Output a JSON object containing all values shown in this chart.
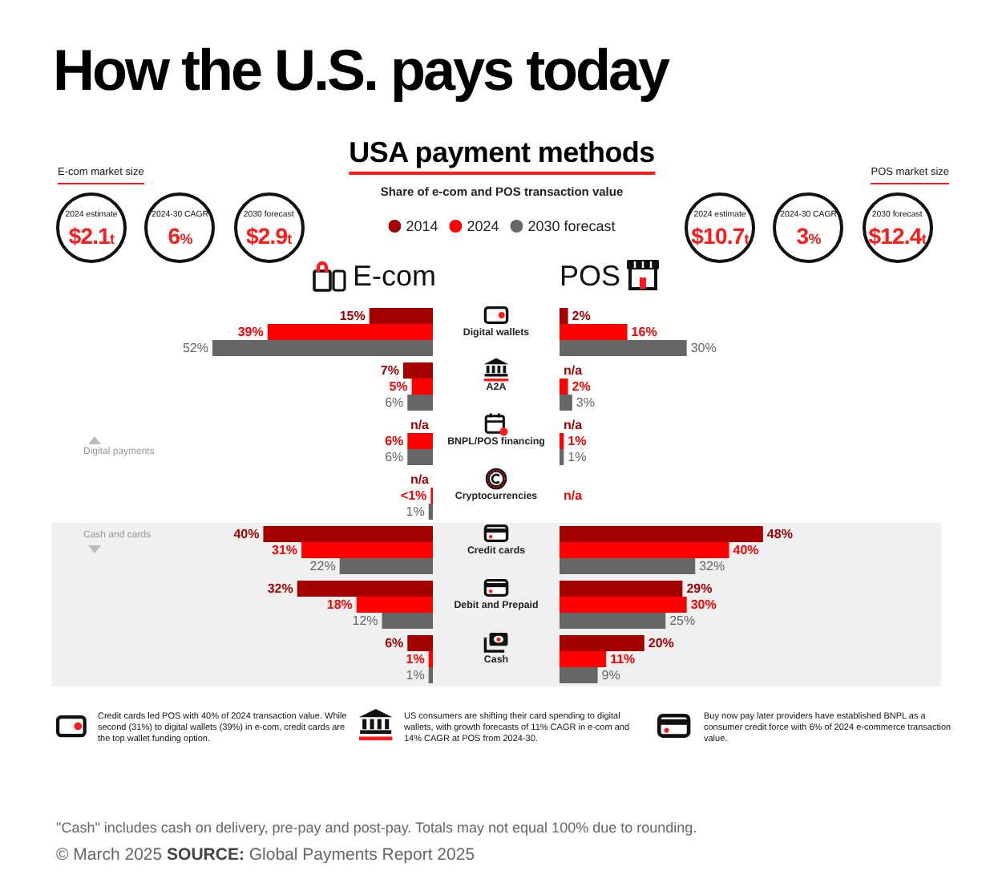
{
  "chart_data": [
    {
      "type": "other",
      "title": "How the U.S. pays today",
      "subtitle": "USA payment methods",
      "annotations": [
        "Share of e-com and POS transaction value"
      ]
    },
    {
      "type": "other",
      "title": "E-com market size",
      "annotations": [
        "2024 estimate",
        "$2.1t",
        "2024-30 CAGR",
        "6%",
        "2030 forecast",
        "$2.9t"
      ]
    },
    {
      "type": "other",
      "title": "POS market size",
      "annotations": [
        "2024 estimate",
        "$10.7t",
        "2024-30 CAGR",
        "3%",
        "2030 forecast",
        "$12.4t"
      ]
    },
    {
      "type": "bar",
      "orientation": "horizontal",
      "title": "E-com",
      "categories": [
        "Digital wallets",
        "A2A",
        "BNPL/POS financing",
        "Cryptocurrencies",
        "Credit cards",
        "Debit and Prepaid",
        "Cash"
      ],
      "series": [
        {
          "name": "2014",
          "color": "#a50000",
          "values": [
            15,
            7,
            null,
            null,
            40,
            32,
            6
          ],
          "value_labels": [
            "15%",
            "7%",
            "n/a",
            "n/a",
            "40%",
            "32%",
            "6%"
          ]
        },
        {
          "name": "2024",
          "color": "#ff0000",
          "values": [
            39,
            5,
            6,
            0.5,
            31,
            18,
            1
          ],
          "value_labels": [
            "39%",
            "5%",
            "6%",
            "<1%",
            "31%",
            "18%",
            "1%"
          ]
        },
        {
          "name": "2030 forecast",
          "color": "#666666",
          "values": [
            52,
            6,
            6,
            1,
            22,
            12,
            1
          ],
          "value_labels": [
            "52%",
            "6%",
            "6%",
            "1%",
            "22%",
            "12%",
            "1%"
          ]
        }
      ],
      "xlim": [
        90,
        0
      ],
      "tick_labels": "y",
      "legend": "top",
      "annotations": [
        "Digital payments"
      ],
      "bands": [
        {
          "axis": "y",
          "from": "Credit cards",
          "to": "Cash",
          "label": "Cash and cards",
          "color": "#f0f0f0"
        }
      ]
    },
    {
      "type": "bar",
      "orientation": "horizontal",
      "title": "POS",
      "categories": [
        "Digital wallets",
        "A2A",
        "BNPL/POS financing",
        "Cryptocurrencies",
        "Credit cards",
        "Debit and Prepaid",
        "Cash"
      ],
      "series": [
        {
          "color": "#a50000",
          "values": [
            2,
            null,
            null,
            null,
            48,
            29,
            20
          ],
          "value_labels": [
            "2%",
            "n/a",
            "n/a",
            null,
            "48%",
            "29%",
            "20%"
          ]
        },
        {
          "color": "#ff0000",
          "values": [
            16,
            2,
            1,
            null,
            40,
            30,
            11
          ],
          "value_labels": [
            "16%",
            "2%",
            "1%",
            "n/a",
            "40%",
            "30%",
            "11%"
          ]
        },
        {
          "color": "#666666",
          "values": [
            30,
            3,
            1,
            null,
            32,
            25,
            9
          ],
          "value_labels": [
            "30%",
            "3%",
            "1%",
            null,
            "32%",
            "25%",
            "9%"
          ]
        }
      ],
      "xlim": [
        0,
        90
      ],
      "tick_labels": false,
      "bands": [
        {
          "axis": "y",
          "from": "Credit cards",
          "to": "Cash",
          "color": "#f0f0f0"
        }
      ]
    },
    {
      "type": "other",
      "annotations": [
        "Credit cards led POS with 40% of 2024 transaction value. While second (31%) to digital wallets (39%) in e-com, credit cards are the top wallet funding option.",
        "US consumers are shifting their card spending to digital wallets, with growth forecasts of 11% CAGR in e-com and 14% CAGR at POS from 2024-30.",
        "Buy now pay later providers have established BNPL as a consumer credit force with 6% of 2024 e-commerce transaction value.",
        "\"Cash\" includes cash on delivery, pre-pay and post-pay. Totals may not equal 100% due to rounding.",
        "© March 2025 SOURCE: Global Payments Report 2025"
      ]
    }
  ]
}
